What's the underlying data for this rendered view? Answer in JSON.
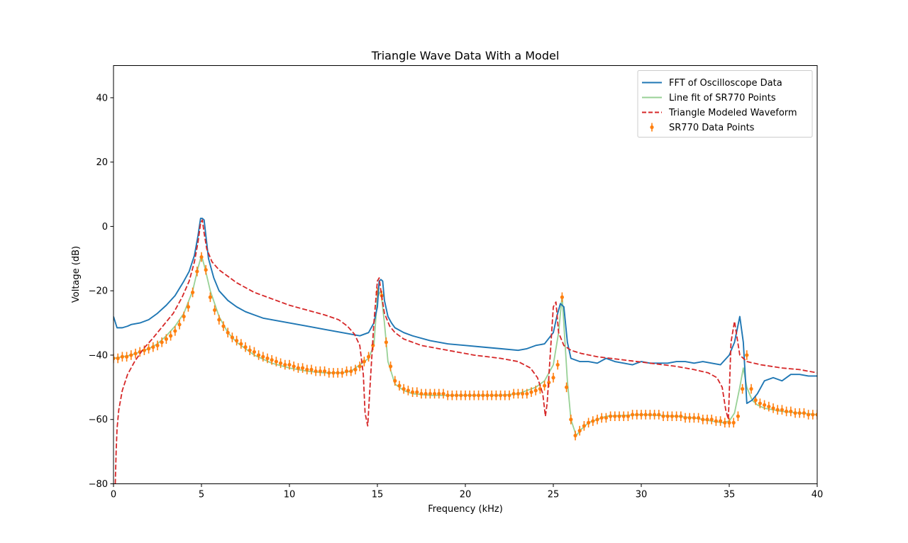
{
  "chart_data": {
    "type": "line",
    "title": "Triangle Wave Data With a Model",
    "xlabel": "Frequency (kHz)",
    "ylabel": "Voltage (dB)",
    "xlim": [
      0,
      40
    ],
    "ylim": [
      -80,
      50
    ],
    "xticks": [
      0,
      5,
      10,
      15,
      20,
      25,
      30,
      35,
      40
    ],
    "yticks": [
      -80,
      -60,
      -40,
      -20,
      0,
      20,
      40
    ],
    "grid": false,
    "legend_position": "top-right",
    "series": [
      {
        "name": "FFT of Oscilloscope Data",
        "color": "#1f77b4",
        "style": "solid",
        "x": [
          0,
          0.2,
          0.5,
          0.8,
          1.0,
          1.5,
          2.0,
          2.5,
          3.0,
          3.5,
          4.0,
          4.3,
          4.6,
          4.8,
          4.95,
          5.05,
          5.15,
          5.4,
          5.7,
          6.0,
          6.5,
          7.0,
          7.5,
          8.0,
          8.5,
          9.0,
          10.0,
          11.0,
          12.0,
          12.5,
          13.0,
          13.5,
          14.0,
          14.5,
          14.8,
          15.0,
          15.1,
          15.2,
          15.3,
          15.4,
          15.6,
          15.8,
          16.0,
          16.5,
          17.0,
          18.0,
          19.0,
          20.0,
          21.0,
          22.0,
          23.0,
          23.5,
          24.0,
          24.5,
          25.0,
          25.2,
          25.4,
          25.6,
          25.8,
          26.0,
          26.5,
          27.0,
          27.5,
          28.0,
          28.5,
          29.0,
          29.5,
          30.0,
          30.5,
          31.0,
          31.5,
          32.0,
          32.5,
          33.0,
          33.5,
          34.0,
          34.5,
          35.0,
          35.3,
          35.6,
          35.8,
          36.0,
          36.3,
          36.6,
          37.0,
          37.5,
          38.0,
          38.5,
          39.0,
          39.5,
          40.0
        ],
        "values": [
          -28,
          -31.5,
          -31.5,
          -31,
          -30.5,
          -30,
          -29,
          -27,
          -24.5,
          -21.5,
          -17,
          -14,
          -9,
          -3,
          2.5,
          2.5,
          2,
          -10,
          -16,
          -20,
          -23,
          -25,
          -26.5,
          -27.5,
          -28.5,
          -29,
          -30,
          -31,
          -32,
          -32.5,
          -33,
          -33.5,
          -34,
          -33,
          -30,
          -25,
          -17,
          -16.5,
          -17,
          -23,
          -28,
          -30,
          -31.5,
          -33,
          -34,
          -35.5,
          -36.5,
          -37,
          -37.5,
          -38,
          -38.5,
          -38,
          -37,
          -36.5,
          -33,
          -28,
          -24,
          -25,
          -36,
          -41,
          -42,
          -42,
          -42.5,
          -41,
          -42,
          -42.5,
          -43,
          -42,
          -42.5,
          -42.5,
          -42.5,
          -42,
          -42,
          -42.5,
          -42,
          -42.5,
          -43,
          -40,
          -36,
          -28,
          -36,
          -55,
          -54,
          -52,
          -48,
          -47,
          -48,
          -46,
          -46,
          -46.5,
          -46.5
        ]
      },
      {
        "name": "Line fit of SR770 Points",
        "color": "#98d196",
        "style": "solid",
        "x": [
          0,
          0.5,
          1.0,
          1.5,
          2.0,
          2.5,
          3.0,
          3.5,
          4.0,
          4.5,
          4.8,
          5.0,
          5.2,
          5.5,
          6.0,
          6.5,
          7.0,
          8.0,
          9.0,
          10.0,
          11.0,
          12.0,
          13.0,
          13.5,
          14.0,
          14.5,
          14.8,
          15.0,
          15.2,
          15.4,
          15.6,
          16.0,
          16.5,
          17.0,
          18.0,
          20.0,
          22.0,
          23.0,
          24.0,
          24.5,
          25.0,
          25.3,
          25.5,
          25.8,
          26.0,
          26.3,
          26.6,
          27.0,
          28.0,
          30.0,
          32.0,
          33.0,
          34.0,
          34.6,
          35.0,
          35.3,
          35.6,
          35.8,
          36.0,
          36.3,
          36.6,
          37.0,
          38.0,
          39.0,
          40.0
        ],
        "values": [
          -41,
          -40.5,
          -40,
          -39,
          -38,
          -36.5,
          -34,
          -31,
          -27,
          -20,
          -13,
          -9,
          -13,
          -20,
          -28,
          -33,
          -36,
          -40,
          -42.5,
          -44,
          -45,
          -45.5,
          -45.5,
          -45,
          -43,
          -41,
          -37,
          -22,
          -20,
          -30,
          -42,
          -49,
          -51,
          -52,
          -52.5,
          -52.5,
          -52.5,
          -52,
          -50,
          -48,
          -43,
          -33,
          -21.5,
          -48,
          -60,
          -65,
          -63,
          -61,
          -59,
          -58.5,
          -59,
          -59.5,
          -60.5,
          -61,
          -60.5,
          -58,
          -50,
          -44,
          -50,
          -54,
          -55.5,
          -56.5,
          -57.5,
          -58,
          -58.5
        ]
      },
      {
        "name": "Triangle Modeled Waveform",
        "color": "#d62728",
        "style": "dashed",
        "x": [
          0.1,
          0.15,
          0.2,
          0.3,
          0.5,
          0.8,
          1.2,
          1.7,
          2.2,
          2.8,
          3.4,
          3.9,
          4.3,
          4.6,
          4.8,
          4.95,
          5.05,
          5.15,
          5.3,
          5.6,
          6.0,
          6.5,
          7.0,
          8.0,
          9.0,
          10.0,
          11.0,
          12.0,
          12.8,
          13.3,
          13.7,
          14.0,
          14.2,
          14.3,
          14.45,
          14.6,
          14.8,
          15.0,
          15.1,
          15.2,
          15.4,
          15.7,
          16.0,
          16.5,
          17.5,
          19.0,
          20.5,
          22.0,
          23.0,
          23.7,
          24.1,
          24.4,
          24.55,
          24.65,
          24.8,
          25.0,
          25.15,
          25.3,
          25.6,
          26.0,
          26.6,
          27.5,
          29.0,
          30.5,
          32.0,
          33.0,
          33.8,
          34.3,
          34.6,
          34.8,
          34.95,
          35.1,
          35.3,
          35.6,
          36.0,
          36.8,
          38.0,
          39.0,
          40.0
        ],
        "values": [
          -80,
          -70,
          -63,
          -57,
          -51,
          -46,
          -42,
          -38,
          -35,
          -31,
          -27,
          -22,
          -17,
          -11,
          -5,
          1,
          2,
          -2,
          -7,
          -11,
          -13.5,
          -15.5,
          -17.5,
          -20.5,
          -22.5,
          -24.5,
          -26,
          -27.5,
          -29,
          -31,
          -33.5,
          -37,
          -46,
          -58,
          -62,
          -48,
          -30,
          -17,
          -16,
          -20,
          -27,
          -31,
          -33,
          -35,
          -37,
          -38.5,
          -40,
          -41,
          -42,
          -44,
          -47,
          -52,
          -59,
          -55,
          -42,
          -25,
          -23.5,
          -33,
          -37,
          -38.5,
          -39.5,
          -40.5,
          -41.5,
          -42.5,
          -43.5,
          -44.5,
          -45.5,
          -47,
          -50,
          -57,
          -60,
          -36,
          -29.5,
          -40,
          -42,
          -43,
          -44,
          -44.5,
          -45.5
        ]
      },
      {
        "name": "SR770 Data Points",
        "color": "#ff7f0e",
        "style": "errorbar",
        "error": 1.5,
        "x": [
          0,
          0.25,
          0.5,
          0.75,
          1.0,
          1.25,
          1.5,
          1.75,
          2.0,
          2.25,
          2.5,
          2.75,
          3.0,
          3.25,
          3.5,
          3.75,
          4.0,
          4.25,
          4.5,
          4.75,
          5.0,
          5.25,
          5.5,
          5.75,
          6.0,
          6.25,
          6.5,
          6.75,
          7.0,
          7.25,
          7.5,
          7.75,
          8.0,
          8.25,
          8.5,
          8.75,
          9.0,
          9.25,
          9.5,
          9.75,
          10.0,
          10.25,
          10.5,
          10.75,
          11.0,
          11.25,
          11.5,
          11.75,
          12.0,
          12.25,
          12.5,
          12.75,
          13.0,
          13.25,
          13.5,
          13.75,
          14.0,
          14.25,
          14.5,
          14.75,
          15.0,
          15.25,
          15.5,
          15.75,
          16.0,
          16.25,
          16.5,
          16.75,
          17.0,
          17.25,
          17.5,
          17.75,
          18.0,
          18.25,
          18.5,
          18.75,
          19.0,
          19.25,
          19.5,
          19.75,
          20.0,
          20.25,
          20.5,
          20.75,
          21.0,
          21.25,
          21.5,
          21.75,
          22.0,
          22.25,
          22.5,
          22.75,
          23.0,
          23.25,
          23.5,
          23.75,
          24.0,
          24.25,
          24.5,
          24.75,
          25.0,
          25.25,
          25.5,
          25.75,
          26.0,
          26.25,
          26.5,
          26.75,
          27.0,
          27.25,
          27.5,
          27.75,
          28.0,
          28.25,
          28.5,
          28.75,
          29.0,
          29.25,
          29.5,
          29.75,
          30.0,
          30.25,
          30.5,
          30.75,
          31.0,
          31.25,
          31.5,
          31.75,
          32.0,
          32.25,
          32.5,
          32.75,
          33.0,
          33.25,
          33.5,
          33.75,
          34.0,
          34.25,
          34.5,
          34.75,
          35.0,
          35.25,
          35.5,
          35.75,
          36.0,
          36.25,
          36.5,
          36.75,
          37.0,
          37.25,
          37.5,
          37.75,
          38.0,
          38.25,
          38.5,
          38.75,
          39.0,
          39.25,
          39.5,
          39.75,
          40.0
        ],
        "values": [
          -41,
          -41,
          -40.5,
          -40.5,
          -40,
          -39.5,
          -39,
          -38.5,
          -38,
          -37.5,
          -37,
          -36,
          -35,
          -34,
          -32.5,
          -30.5,
          -28,
          -25,
          -20.5,
          -14,
          -9.5,
          -13.5,
          -22,
          -26,
          -29,
          -31,
          -33,
          -34.5,
          -35.5,
          -36.5,
          -37.5,
          -38.5,
          -39,
          -40,
          -40.5,
          -41,
          -41.5,
          -42,
          -42.5,
          -43,
          -43,
          -43.5,
          -44,
          -44,
          -44.5,
          -44.5,
          -45,
          -45,
          -45,
          -45.5,
          -45.5,
          -45.5,
          -45.5,
          -45,
          -45,
          -44.5,
          -43.5,
          -42,
          -40.5,
          -37,
          -20.5,
          -21.5,
          -36,
          -43.5,
          -48,
          -49.5,
          -50.5,
          -51,
          -51.5,
          -51.5,
          -52,
          -52,
          -52,
          -52,
          -52,
          -52,
          -52.5,
          -52.5,
          -52.5,
          -52.5,
          -52.5,
          -52.5,
          -52.5,
          -52.5,
          -52.5,
          -52.5,
          -52.5,
          -52.5,
          -52.5,
          -52.5,
          -52.5,
          -52,
          -52,
          -52,
          -52,
          -51.5,
          -51,
          -50.5,
          -49.5,
          -48.5,
          -47,
          -43,
          -22,
          -50,
          -60,
          -65,
          -63.5,
          -62,
          -61,
          -60.5,
          -60,
          -59.5,
          -59.5,
          -59,
          -59,
          -59,
          -59,
          -59,
          -58.5,
          -58.5,
          -58.5,
          -58.5,
          -58.5,
          -58.5,
          -58.5,
          -59,
          -59,
          -59,
          -59,
          -59,
          -59.5,
          -59.5,
          -59.5,
          -59.5,
          -60,
          -60,
          -60,
          -60.5,
          -60.5,
          -61,
          -61,
          -61,
          -59,
          -50.5,
          -40,
          -50.5,
          -54,
          -55,
          -55.5,
          -56,
          -56.5,
          -57,
          -57,
          -57.5,
          -57.5,
          -58,
          -58,
          -58,
          -58.5,
          -58.5,
          -58.5
        ]
      }
    ]
  }
}
